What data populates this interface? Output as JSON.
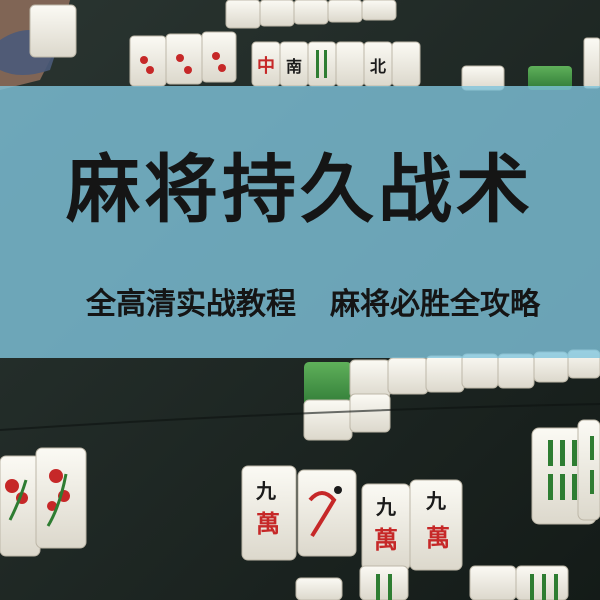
{
  "banner": {
    "title": "麻将持久战术",
    "subtitle_left": "全高清实战教程",
    "subtitle_right": "麻将必胜全攻略"
  },
  "tiles": {
    "wan_numeral": "九",
    "wan_character": "萬",
    "red_dragon": "中",
    "wind_south": "南",
    "wind_north": "北"
  },
  "colors": {
    "banner_overlay": "#80c4dc",
    "tile_face": "#f4f1e8",
    "tile_back": "#4a9a4a",
    "felt": "#1f2a26",
    "tile_red": "#c62828"
  }
}
